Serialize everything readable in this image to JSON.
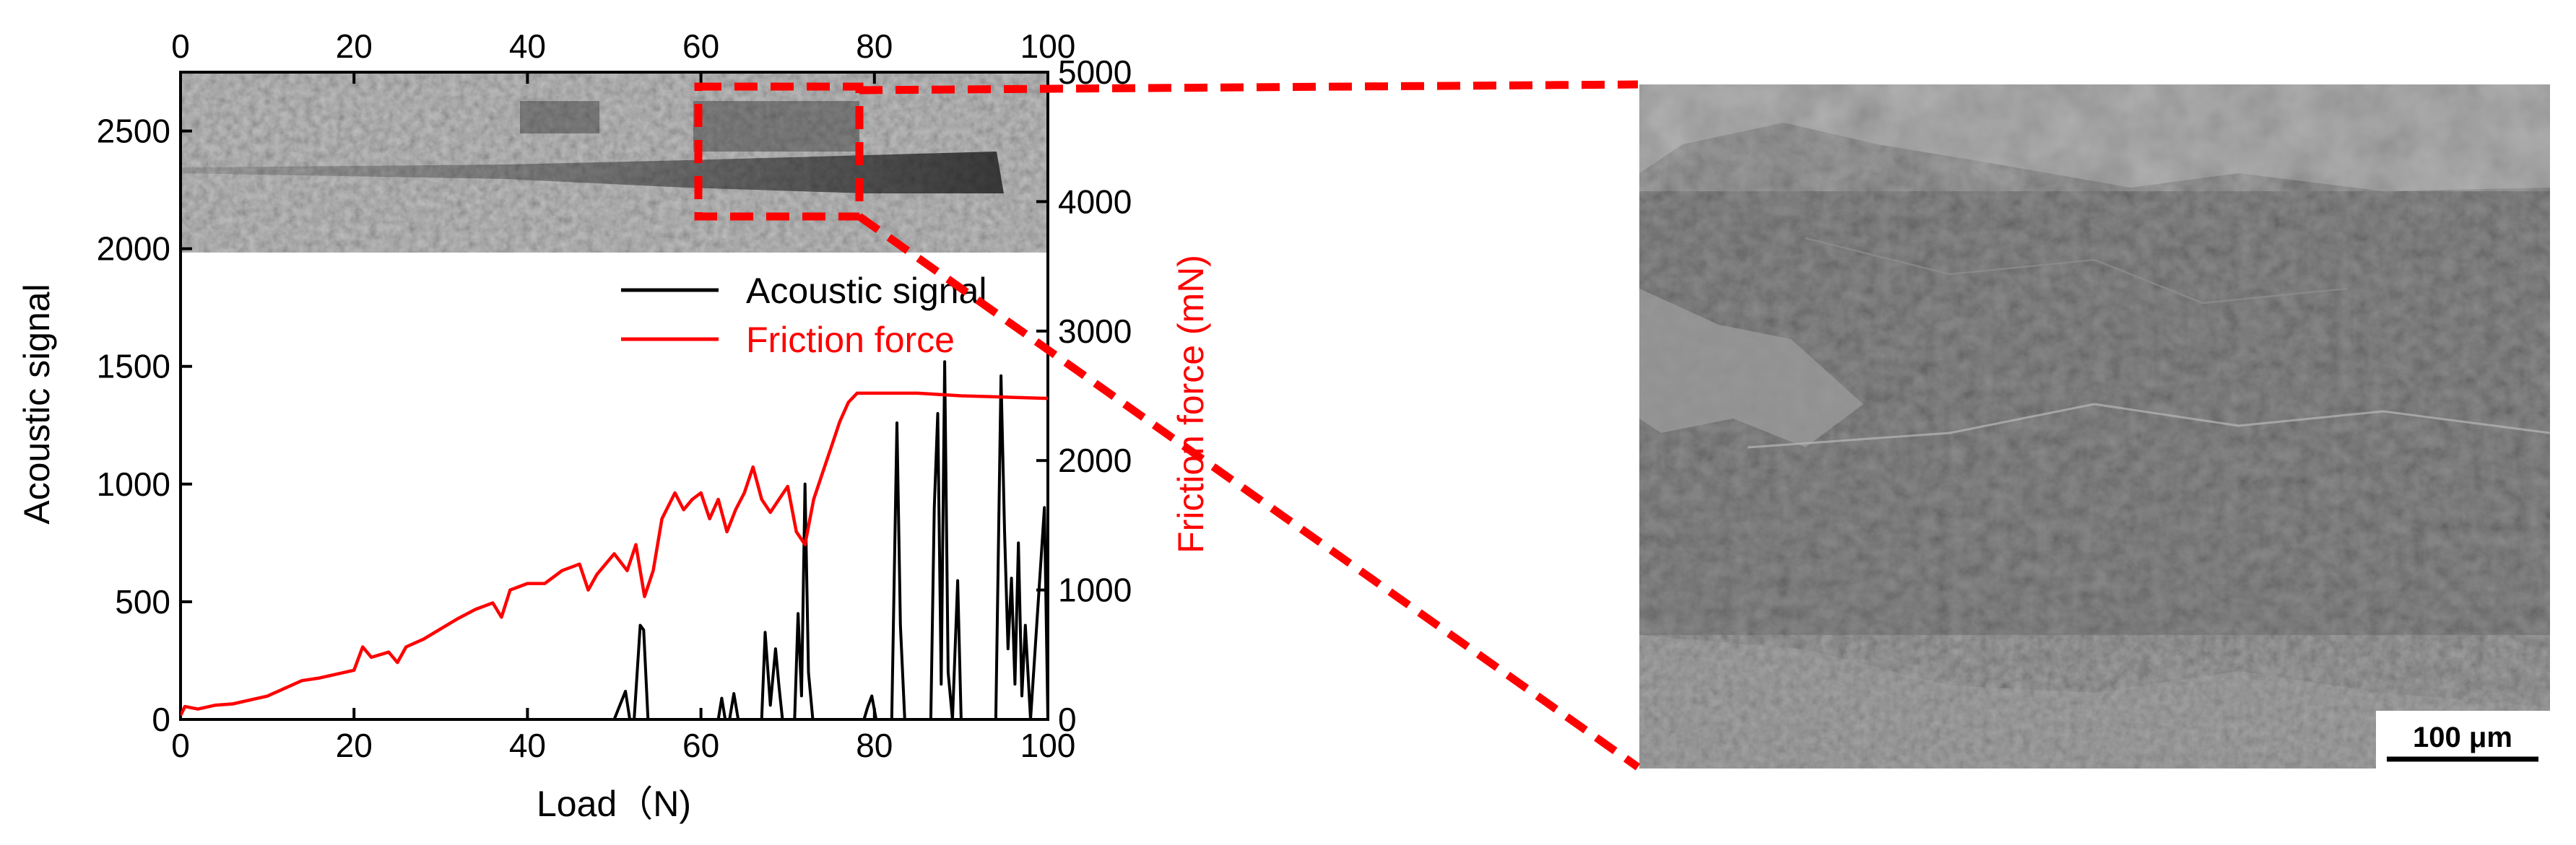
{
  "chart_data": {
    "type": "line",
    "xlabel": "Load（N)",
    "ylabel_left": "Acoustic signal",
    "ylabel_right": "Friction force (mN)",
    "xlim": [
      0,
      100
    ],
    "ylim_left": [
      0,
      2750
    ],
    "ylim_right": [
      0,
      5000
    ],
    "x_ticks": [
      "0",
      "20",
      "40",
      "60",
      "80",
      "100"
    ],
    "y_left_ticks": [
      "0",
      "500",
      "1000",
      "1500",
      "2000",
      "2500"
    ],
    "y_right_ticks": [
      "0",
      "1000",
      "2000",
      "3000",
      "4000",
      "5000"
    ],
    "grid": false,
    "legend_placement": "upper-right",
    "series": [
      {
        "name": "Acoustic signal",
        "axis": "left",
        "color": "#000000",
        "x": [
          0,
          50,
          51.3,
          51.8,
          52.3,
          53,
          53.4,
          53.9,
          55,
          62,
          62.4,
          62.8,
          63.3,
          63.8,
          64.3,
          64.8,
          67,
          67.4,
          68,
          68.6,
          69,
          69.4,
          70.8,
          71.2,
          71.6,
          72,
          72.4,
          72.9,
          78.8,
          79.2,
          79.7,
          80.2,
          82,
          82.6,
          83,
          83.5,
          84,
          86.5,
          86.9,
          87.3,
          87.7,
          88.1,
          88.5,
          89,
          89.6,
          90,
          90.5,
          94,
          94.6,
          95,
          95.4,
          95.8,
          96.2,
          96.6,
          97,
          97.4,
          98,
          99.6,
          100
        ],
        "values": [
          0,
          0,
          120,
          0,
          0,
          400,
          380,
          0,
          0,
          0,
          90,
          0,
          0,
          110,
          0,
          0,
          0,
          370,
          60,
          300,
          140,
          0,
          0,
          450,
          100,
          1000,
          200,
          0,
          0,
          50,
          100,
          0,
          0,
          1260,
          400,
          0,
          0,
          0,
          900,
          1300,
          150,
          1520,
          200,
          0,
          590,
          0,
          0,
          0,
          1460,
          800,
          300,
          600,
          150,
          750,
          100,
          400,
          0,
          900,
          0
        ]
      },
      {
        "name": "Friction force",
        "axis": "right",
        "color": "#ff0000",
        "x": [
          0,
          0.5,
          2,
          4,
          6,
          8,
          10,
          12,
          14,
          16,
          18,
          20,
          21,
          22,
          24,
          25,
          26,
          28,
          30,
          32,
          34,
          36,
          37,
          38,
          40,
          42,
          44,
          46,
          47,
          48,
          50,
          51.5,
          52.5,
          53.5,
          54.5,
          55.5,
          57,
          58,
          59,
          60,
          61,
          62,
          63,
          64,
          65,
          66,
          67,
          68,
          69,
          70,
          71,
          72,
          73,
          74,
          75,
          76,
          77,
          78,
          80,
          85,
          90,
          95,
          100
        ],
        "values": [
          30,
          100,
          80,
          110,
          120,
          150,
          180,
          240,
          300,
          320,
          350,
          380,
          560,
          480,
          520,
          440,
          560,
          620,
          700,
          780,
          850,
          900,
          790,
          1000,
          1050,
          1050,
          1150,
          1200,
          1000,
          1120,
          1280,
          1150,
          1350,
          950,
          1150,
          1550,
          1750,
          1620,
          1700,
          1750,
          1550,
          1700,
          1450,
          1620,
          1750,
          1950,
          1700,
          1600,
          1700,
          1800,
          1450,
          1350,
          1700,
          1900,
          2100,
          2300,
          2450,
          2520,
          2520,
          2520,
          2500,
          2490,
          2480
        ]
      }
    ]
  },
  "annotations": {
    "scale_bar_label": "100 μm"
  },
  "colors": {
    "acoustic_line": "#000000",
    "friction_line": "#ff0000",
    "zoom_box": "#ff0000",
    "micrograph_base": "#5c5c5c"
  }
}
